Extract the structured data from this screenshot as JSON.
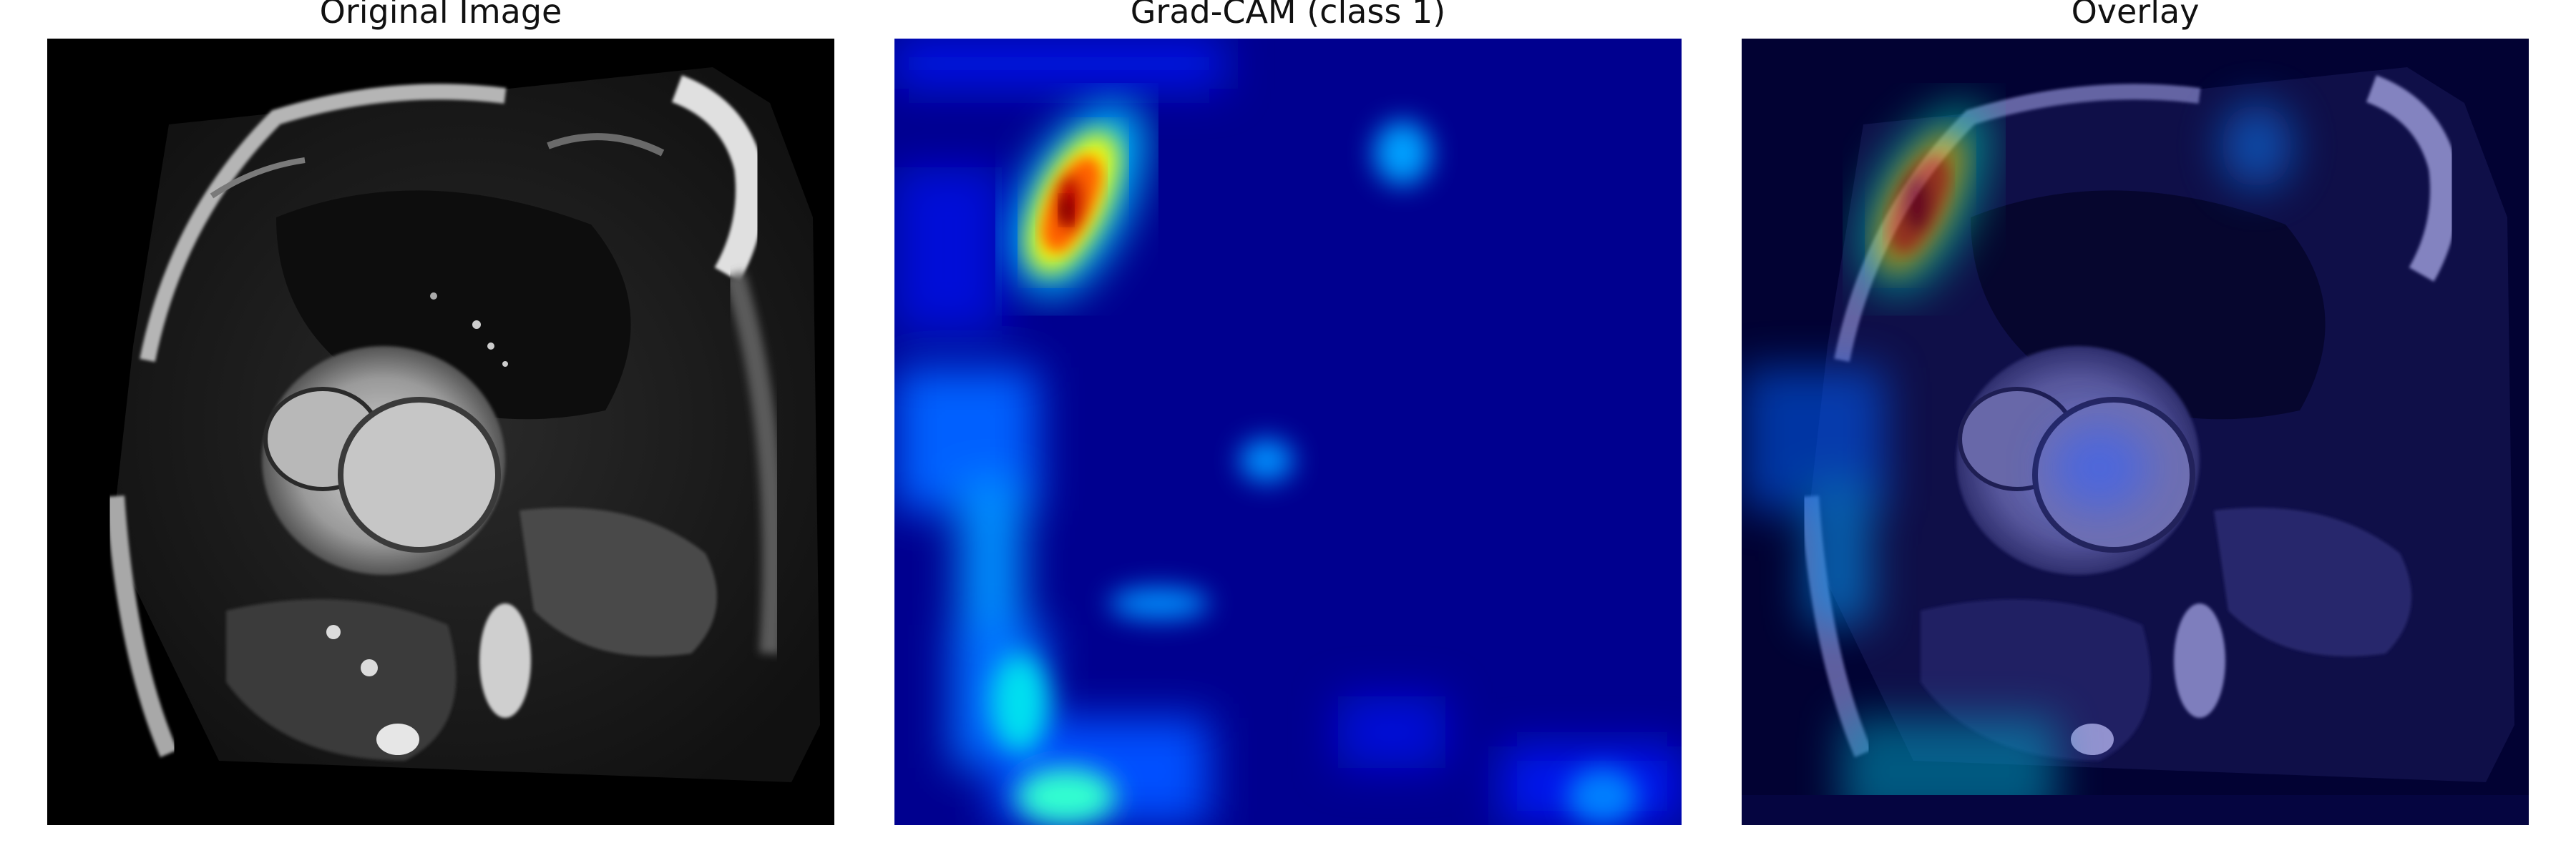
{
  "panels": {
    "original": {
      "title": "Original Image"
    },
    "gradcam": {
      "title": "Grad-CAM (class 1)"
    },
    "overlay": {
      "title": "Overlay"
    }
  },
  "colors": {
    "background": "#ffffff",
    "mri_background": "#000000",
    "heatmap_low": "#00008f",
    "heatmap_mid": "#00ffff",
    "heatmap_high": "#ffff00",
    "heatmap_peak": "#800000",
    "overlay_tint": "#0a0a55"
  },
  "colormap": "jet"
}
